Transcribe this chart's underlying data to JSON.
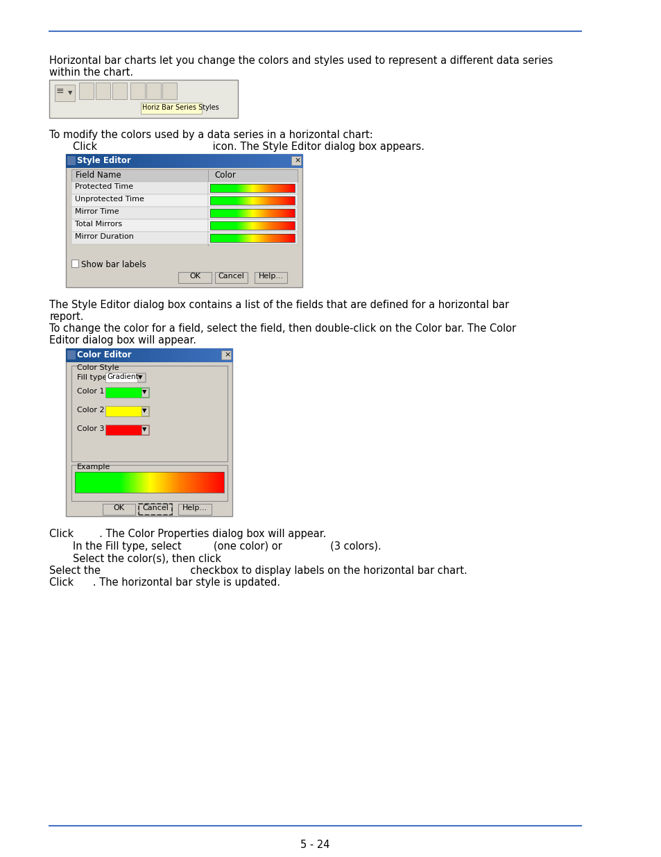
{
  "title_line_color": "#4472C4",
  "background_color": "#ffffff",
  "text_color": "#000000",
  "body_font_size": 10.5,
  "page_number": "5 - 24",
  "para1a": "Horizontal bar charts let you change the colors and styles used to represent a different data series",
  "para1b": "within the chart.",
  "para2": "To modify the colors used by a data series in a horizontal chart:",
  "para3_indent": "Click                                    icon. The Style Editor dialog box appears.",
  "style_editor_title": "Style Editor",
  "style_editor_fields": [
    "Field Name",
    "Protected Time",
    "Unprotected Time",
    "Mirror Time",
    "Total Mirrors",
    "Mirror Duration"
  ],
  "color_col_header": "Color",
  "show_bar_labels": "Show bar labels",
  "btn_ok": "OK",
  "btn_cancel": "Cancel",
  "btn_help": "Help...",
  "para4a": "The Style Editor dialog box contains a list of the fields that are defined for a horizontal bar",
  "para4b": "report.",
  "para5a": "To change the color for a field, select the field, then double-click on the Color bar. The Color",
  "para5b": "Editor dialog box will appear.",
  "color_editor_title": "Color Editor",
  "fill_type_label": "Fill type",
  "fill_type_value": "Gradient",
  "color_style_label": "Color Style",
  "color_labels": [
    "Color 1",
    "Color 2",
    "Color 3"
  ],
  "color_values": [
    "#00ff00",
    "#ffff00",
    "#ff0000"
  ],
  "example_label": "Example",
  "para6": "Click        . The Color Properties dialog box will appear.",
  "para7_indent": "In the Fill type, select          (one color) or               (3 colors).",
  "para8_indent": "Select the color(s), then click",
  "para9": "Select the                            checkbox to display labels on the horizontal bar chart.",
  "para10": "Click      . The horizontal bar style is updated.",
  "dialog_bg": "#d4d0c8",
  "toolbar_bg": "#e8e8e0"
}
